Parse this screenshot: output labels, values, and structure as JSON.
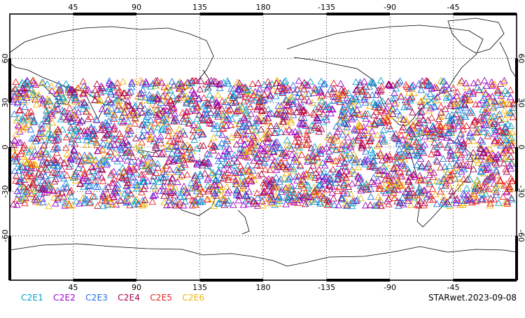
{
  "map": {
    "lon_labels": [
      "45",
      "90",
      "135",
      "180",
      "-135",
      "-90",
      "-45"
    ],
    "lat_labels": [
      "60",
      "30",
      "0",
      "-30",
      "-60"
    ],
    "lon_range": [
      0,
      360
    ],
    "lat_range": [
      -90,
      90
    ],
    "grid": true,
    "grid_style": "dotted",
    "marker": "triangle-open",
    "coverage_lat_range": [
      -40,
      45
    ]
  },
  "legend": {
    "items": [
      {
        "label": "C2E1",
        "color": "#00a0c8"
      },
      {
        "label": "C2E2",
        "color": "#a000c8"
      },
      {
        "label": "C2E3",
        "color": "#1e6ee6"
      },
      {
        "label": "C2E4",
        "color": "#a00050"
      },
      {
        "label": "C2E5",
        "color": "#e61e1e"
      },
      {
        "label": "C2E6",
        "color": "#f0b400"
      }
    ]
  },
  "caption": "STARwet.2023-09-08"
}
